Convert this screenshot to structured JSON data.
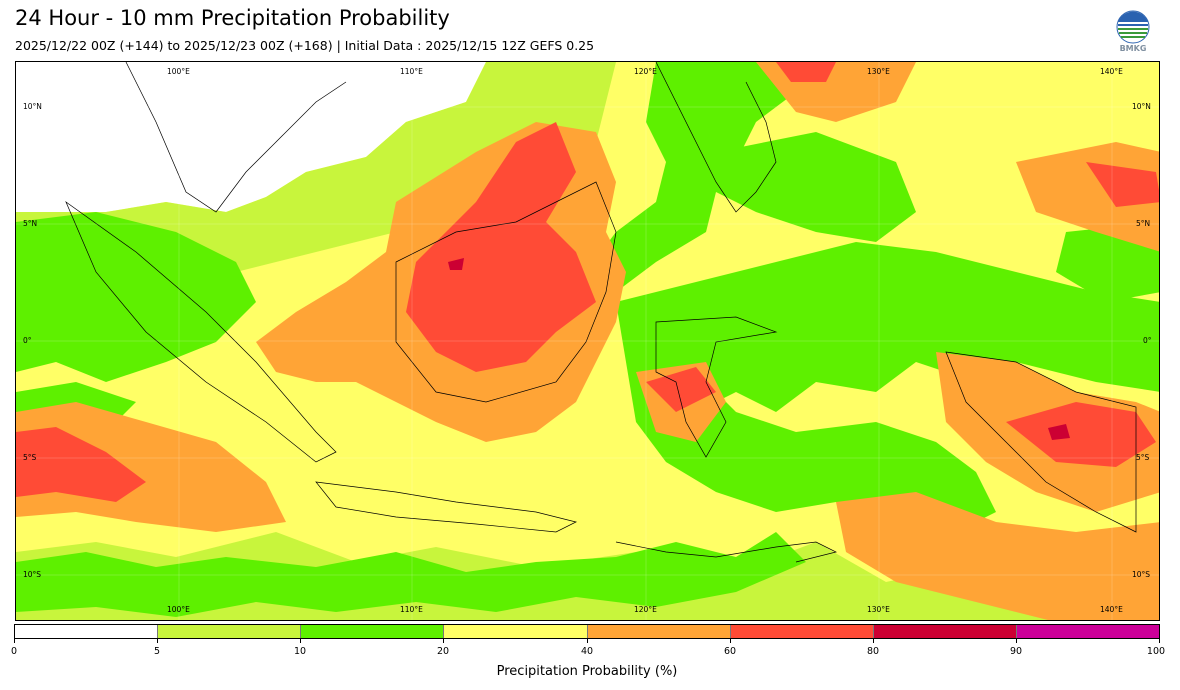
{
  "header": {
    "title": "24 Hour - 10 mm Precipitation Probability",
    "subtitle": "2025/12/22 00Z (+144) to 2025/12/23 00Z (+168) | Initial Data : 2025/12/15 12Z GEFS 0.25"
  },
  "logo": {
    "text": "BMKG"
  },
  "map": {
    "lon_labels": [
      "100°E",
      "110°E",
      "120°E",
      "130°E",
      "140°E"
    ],
    "lat_labels": [
      "10°N",
      "5°N",
      "0°",
      "5°S",
      "10°S"
    ]
  },
  "colorbar": {
    "ticks": [
      "0",
      "5",
      "10",
      "20",
      "40",
      "60",
      "80",
      "90",
      "100"
    ],
    "colors": [
      "#ffffff",
      "#c8f53c",
      "#5ef000",
      "#ffff66",
      "#ffa436",
      "#ff4b36",
      "#cc0033",
      "#cc0099"
    ],
    "label": "Precipitation Probability (%)"
  }
}
